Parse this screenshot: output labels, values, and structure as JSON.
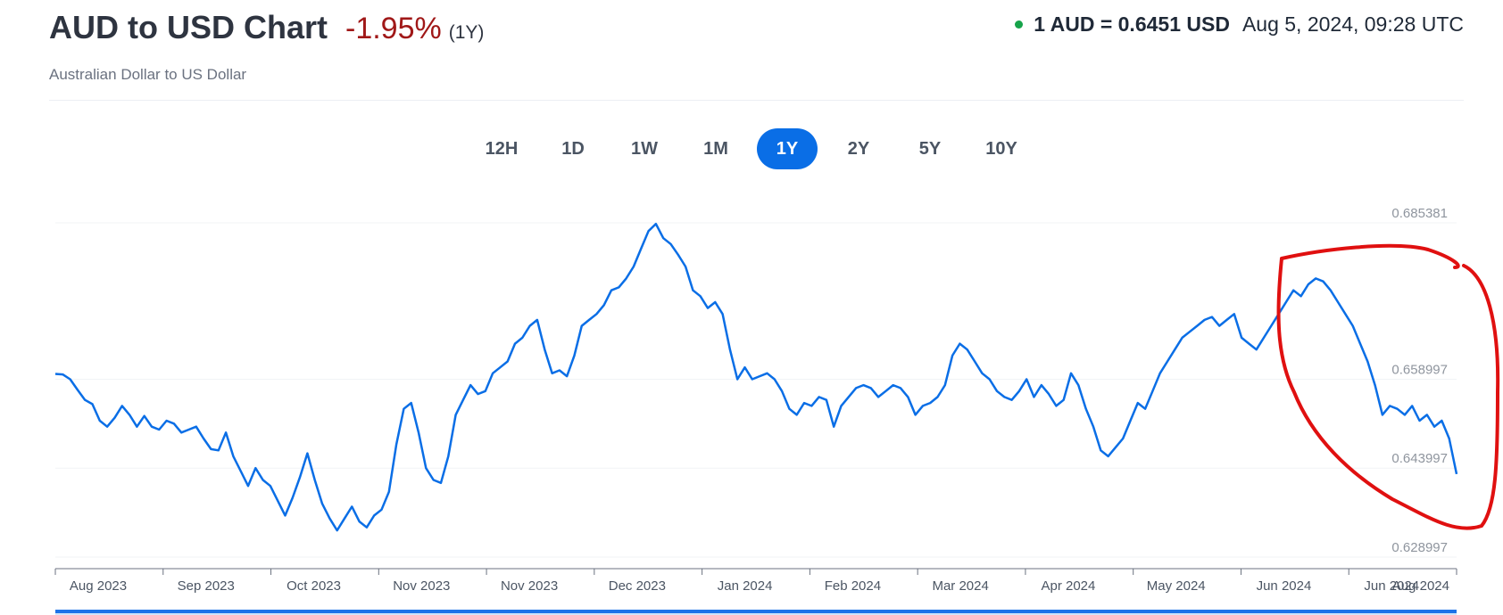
{
  "header": {
    "title": "AUD to USD Chart",
    "change": "-1.95%",
    "period": "(1Y)",
    "subtitle": "Australian Dollar to US Dollar",
    "rate": "1 AUD = 0.6451 USD",
    "timestamp": "Aug 5, 2024, 09:28 UTC",
    "status_color": "#16a34a",
    "change_color": "#a01818"
  },
  "range_tabs": [
    {
      "label": "12H",
      "active": false
    },
    {
      "label": "1D",
      "active": false
    },
    {
      "label": "1W",
      "active": false
    },
    {
      "label": "1M",
      "active": false
    },
    {
      "label": "1Y",
      "active": true
    },
    {
      "label": "2Y",
      "active": false
    },
    {
      "label": "5Y",
      "active": false
    },
    {
      "label": "10Y",
      "active": false
    }
  ],
  "colors": {
    "accent": "#0a6ee6",
    "line": "#0a6ee6",
    "annotation": "#e01010"
  },
  "chart_data": {
    "type": "line",
    "title": "",
    "xlabel": "",
    "ylabel": "",
    "ylim": [
      0.628997,
      0.685381
    ],
    "y_ticks": [
      "0.685381",
      "0.658997",
      "0.643997",
      "0.628997"
    ],
    "x_ticks": [
      "Aug 2023",
      "Sep 2023",
      "Oct 2023",
      "Nov 2023",
      "Nov 2023",
      "Dec 2023",
      "Jan 2024",
      "Feb 2024",
      "Mar 2024",
      "Apr 2024",
      "May 2024",
      "Jun 2024",
      "Jun 2024",
      "Aug 2024"
    ],
    "grid": true,
    "legend": "none",
    "series": [
      {
        "values": [
          0.6599,
          0.6598,
          0.659,
          0.6572,
          0.6555,
          0.6548,
          0.652,
          0.651,
          0.6525,
          0.6545,
          0.653,
          0.651,
          0.6528,
          0.651,
          0.6505,
          0.652,
          0.6515,
          0.65,
          0.6505,
          0.651,
          0.649,
          0.6472,
          0.647,
          0.65,
          0.646,
          0.6435,
          0.641,
          0.644,
          0.642,
          0.641,
          0.6385,
          0.636,
          0.639,
          0.6425,
          0.6465,
          0.642,
          0.638,
          0.6355,
          0.6335,
          0.6355,
          0.6375,
          0.635,
          0.634,
          0.636,
          0.637,
          0.64,
          0.648,
          0.654,
          0.655,
          0.65,
          0.644,
          0.642,
          0.6415,
          0.646,
          0.653,
          0.6555,
          0.658,
          0.6565,
          0.657,
          0.66,
          0.661,
          0.662,
          0.665,
          0.666,
          0.668,
          0.669,
          0.664,
          0.66,
          0.6605,
          0.6595,
          0.663,
          0.668,
          0.669,
          0.67,
          0.6715,
          0.674,
          0.6745,
          0.676,
          0.678,
          0.681,
          0.684,
          0.6852,
          0.6828,
          0.6818,
          0.68,
          0.678,
          0.674,
          0.673,
          0.671,
          0.672,
          0.67,
          0.664,
          0.659,
          0.661,
          0.659,
          0.6595,
          0.66,
          0.659,
          0.657,
          0.654,
          0.653,
          0.655,
          0.6545,
          0.656,
          0.6555,
          0.651,
          0.6545,
          0.656,
          0.6575,
          0.658,
          0.6575,
          0.656,
          0.657,
          0.658,
          0.6575,
          0.656,
          0.653,
          0.6545,
          0.655,
          0.656,
          0.658,
          0.663,
          0.665,
          0.664,
          0.662,
          0.66,
          0.659,
          0.657,
          0.656,
          0.6555,
          0.657,
          0.659,
          0.656,
          0.658,
          0.6565,
          0.6545,
          0.6555,
          0.66,
          0.658,
          0.654,
          0.651,
          0.647,
          0.646,
          0.6475,
          0.649,
          0.652,
          0.655,
          0.654,
          0.657,
          0.66,
          0.662,
          0.664,
          0.666,
          0.667,
          0.668,
          0.669,
          0.6695,
          0.668,
          0.669,
          0.67,
          0.666,
          0.665,
          0.664,
          0.666,
          0.668,
          0.67,
          0.672,
          0.674,
          0.673,
          0.675,
          0.676,
          0.6755,
          0.674,
          0.672,
          0.67,
          0.668,
          0.665,
          0.662,
          0.658,
          0.653,
          0.6545,
          0.654,
          0.653,
          0.6545,
          0.652,
          0.653,
          0.651,
          0.652,
          0.649,
          0.643
        ]
      }
    ]
  },
  "annotation": {
    "shape": "hand-drawn circle",
    "color": "#e01010"
  }
}
